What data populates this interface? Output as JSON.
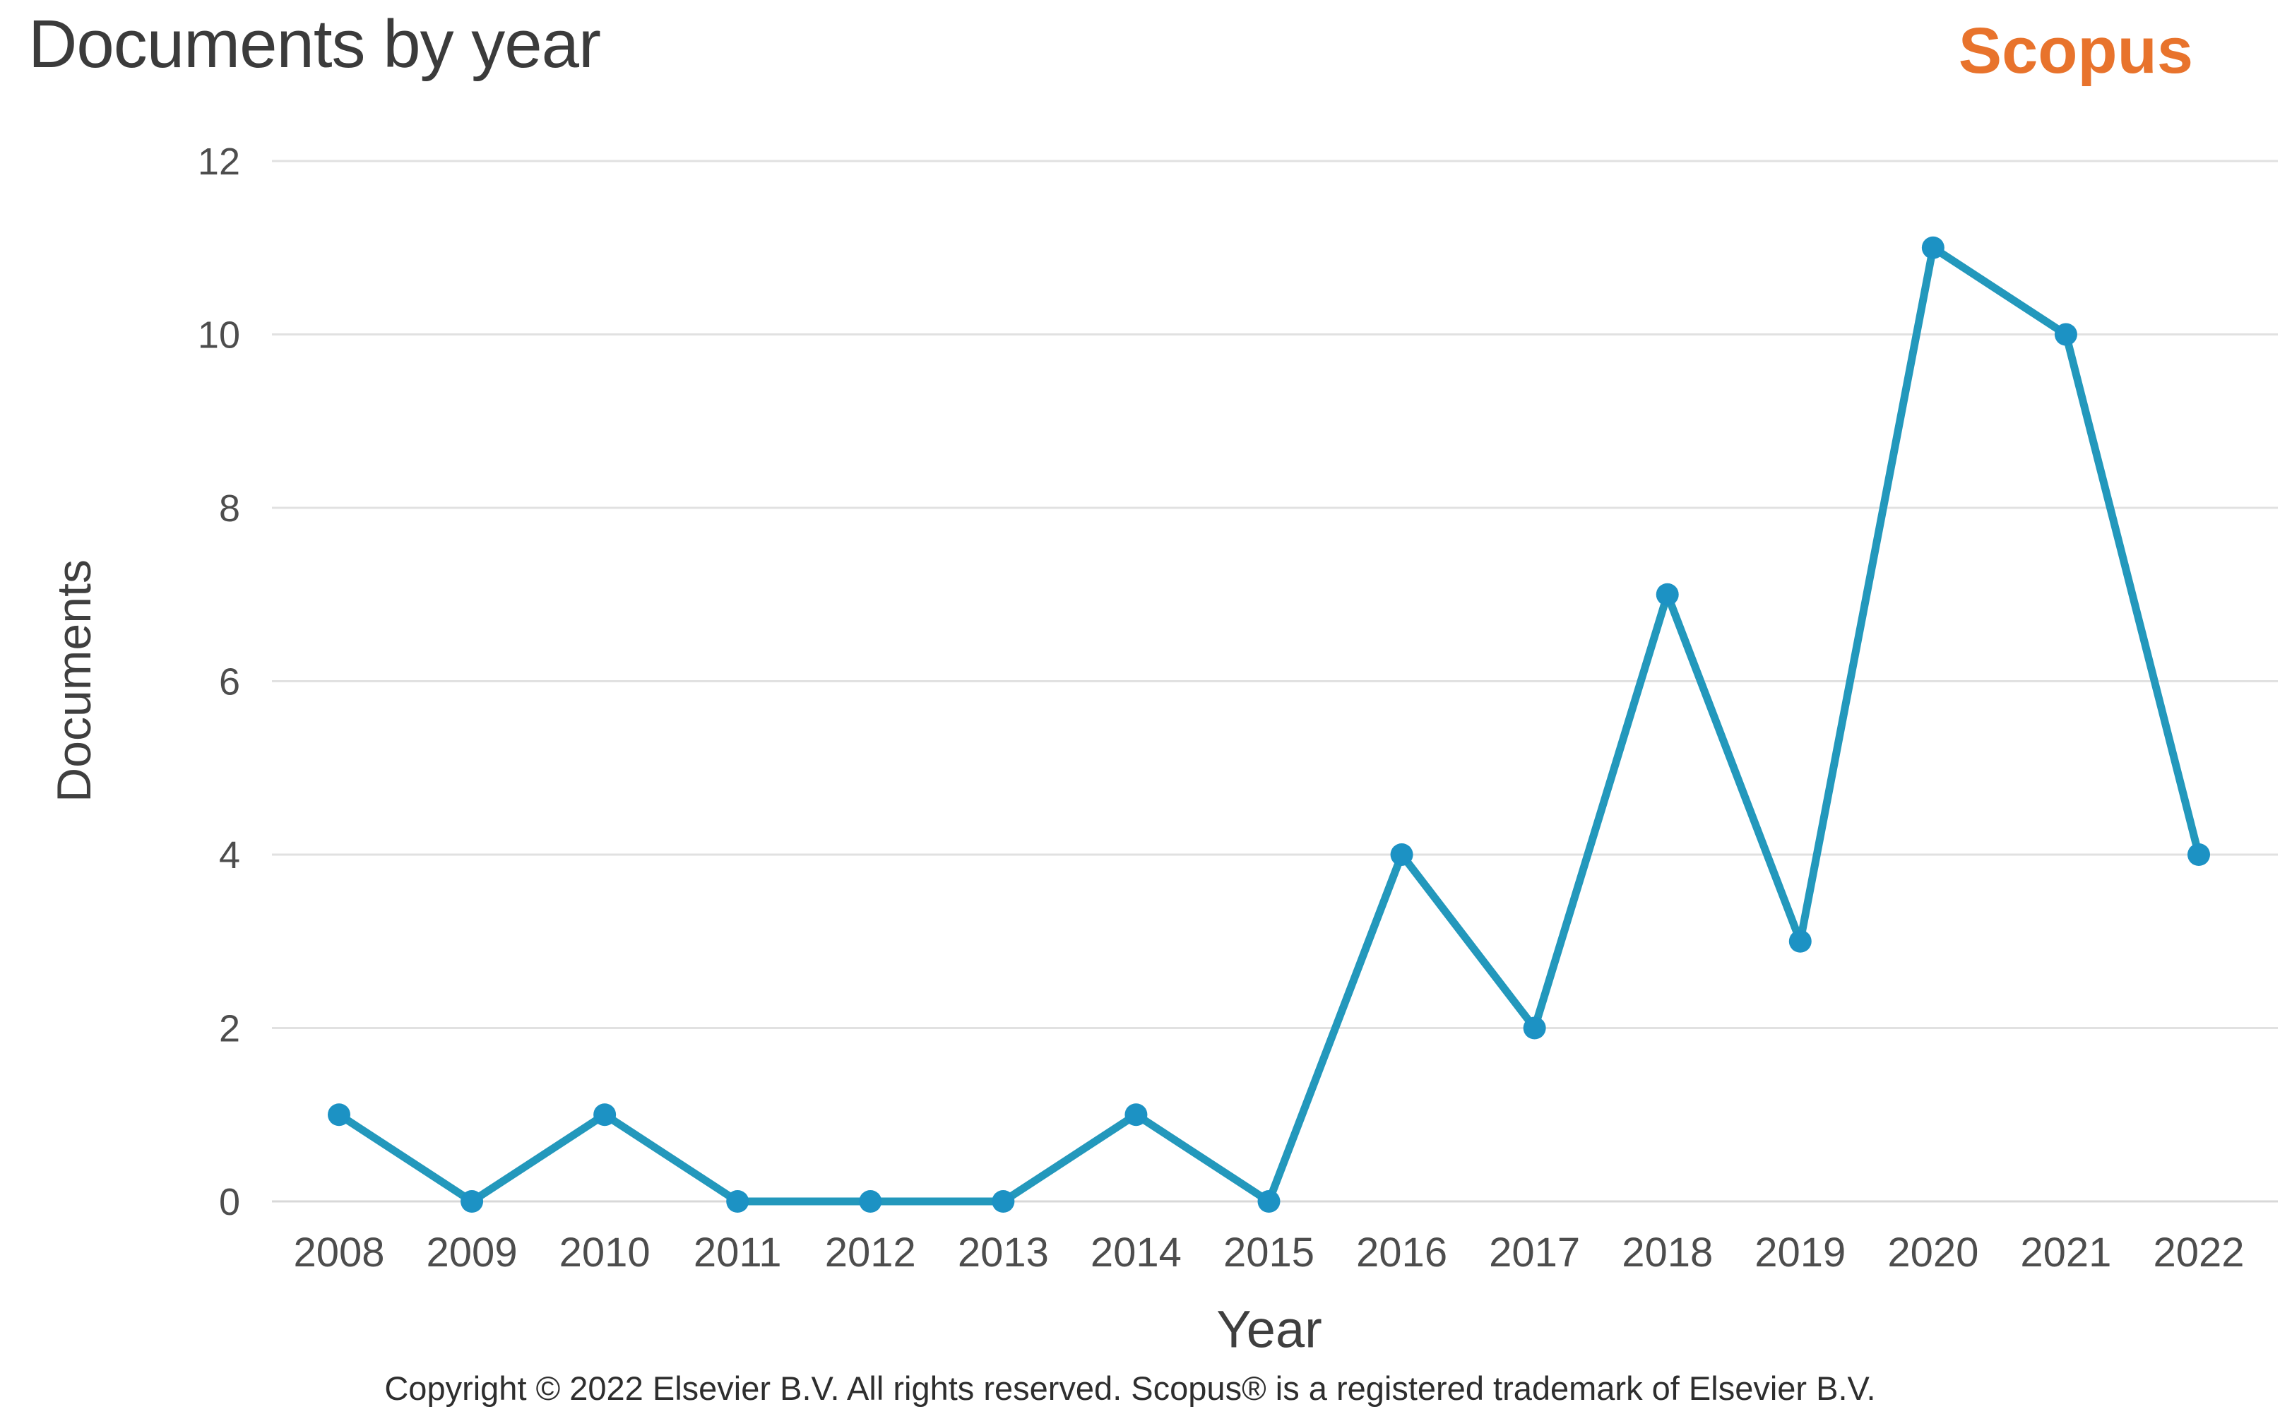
{
  "header": {
    "title": "Documents by year",
    "brand": "Scopus"
  },
  "footer": {
    "copyright": "Copyright © 2022 Elsevier B.V. All rights reserved. Scopus® is a registered trademark of Elsevier B.V."
  },
  "colors": {
    "background": "#FFFFFF",
    "title_text": "#3B3B3B",
    "brand_orange": "#E8732C",
    "axis_title_text": "#3F3F3F",
    "tick_text": "#4D4D4D",
    "line": "#2398BC",
    "marker": "#1C92C4",
    "gridline": "#E1E1E1",
    "baseline": "#D8D8D8",
    "copyright_text": "#2E2E2E"
  },
  "chart_data": {
    "type": "line",
    "title": "Documents by year",
    "categories": [
      "2008",
      "2009",
      "2010",
      "2011",
      "2012",
      "2013",
      "2014",
      "2015",
      "2016",
      "2017",
      "2018",
      "2019",
      "2020",
      "2021",
      "2022"
    ],
    "values": [
      1,
      0,
      1,
      0,
      0,
      0,
      1,
      0,
      4,
      2,
      7,
      3,
      11,
      10,
      4
    ],
    "xlabel": "Year",
    "ylabel": "Documents",
    "ylim": [
      0,
      12
    ],
    "yticks": [
      0,
      2,
      4,
      6,
      8,
      10,
      12
    ],
    "grid": "horizontal",
    "legend": "none",
    "marker_shape": "circle"
  }
}
